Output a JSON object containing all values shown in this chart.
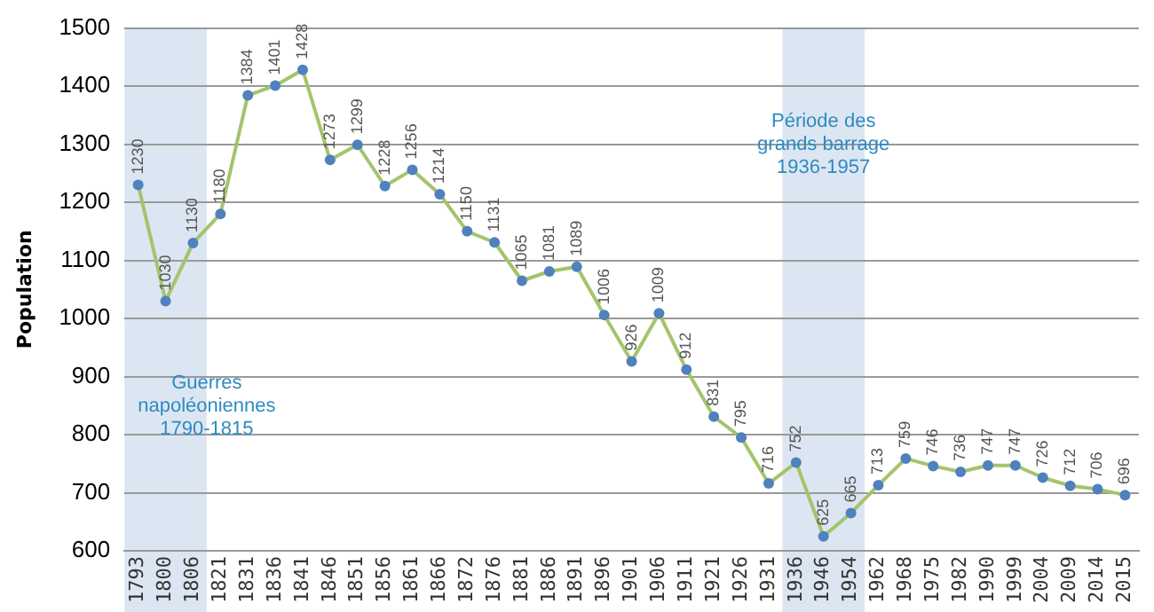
{
  "chart_data": {
    "type": "line",
    "ylabel": "Population",
    "categories": [
      "1793",
      "1800",
      "1806",
      "1821",
      "1831",
      "1836",
      "1841",
      "1846",
      "1851",
      "1856",
      "1861",
      "1866",
      "1872",
      "1876",
      "1881",
      "1886",
      "1891",
      "1896",
      "1901",
      "1906",
      "1911",
      "1921",
      "1926",
      "1931",
      "1936",
      "1946",
      "1954",
      "1962",
      "1968",
      "1975",
      "1982",
      "1990",
      "1999",
      "2004",
      "2009",
      "2014",
      "2015"
    ],
    "series": [
      {
        "color": "#a4c46c",
        "values": [
          1230,
          1030,
          1130,
          1180,
          1384,
          1401,
          1428,
          1273,
          1299,
          1228,
          1256,
          1214,
          1150,
          1131,
          1065,
          1081,
          1089,
          1006,
          926,
          1009,
          912,
          831,
          795,
          716,
          752,
          625,
          665,
          713,
          759,
          746,
          736,
          747,
          747,
          726,
          712,
          706,
          696
        ]
      }
    ],
    "marker": "circle",
    "data_labels": true,
    "ylim": [
      600,
      1500
    ],
    "yticks": [
      600,
      700,
      800,
      900,
      1000,
      1100,
      1200,
      1300,
      1400,
      1500
    ],
    "grid": "y",
    "legend": false,
    "bands": [
      {
        "axis": "x",
        "from": "1793",
        "to": "1806",
        "label": "Guerres\nnapoléoniennes\n1790-1815",
        "color": "#dce6f2"
      },
      {
        "axis": "x",
        "from": "1936",
        "to": "1954",
        "label": "Période des\ngrands barrage\n1936-1957",
        "color": "#dce6f2"
      }
    ]
  }
}
